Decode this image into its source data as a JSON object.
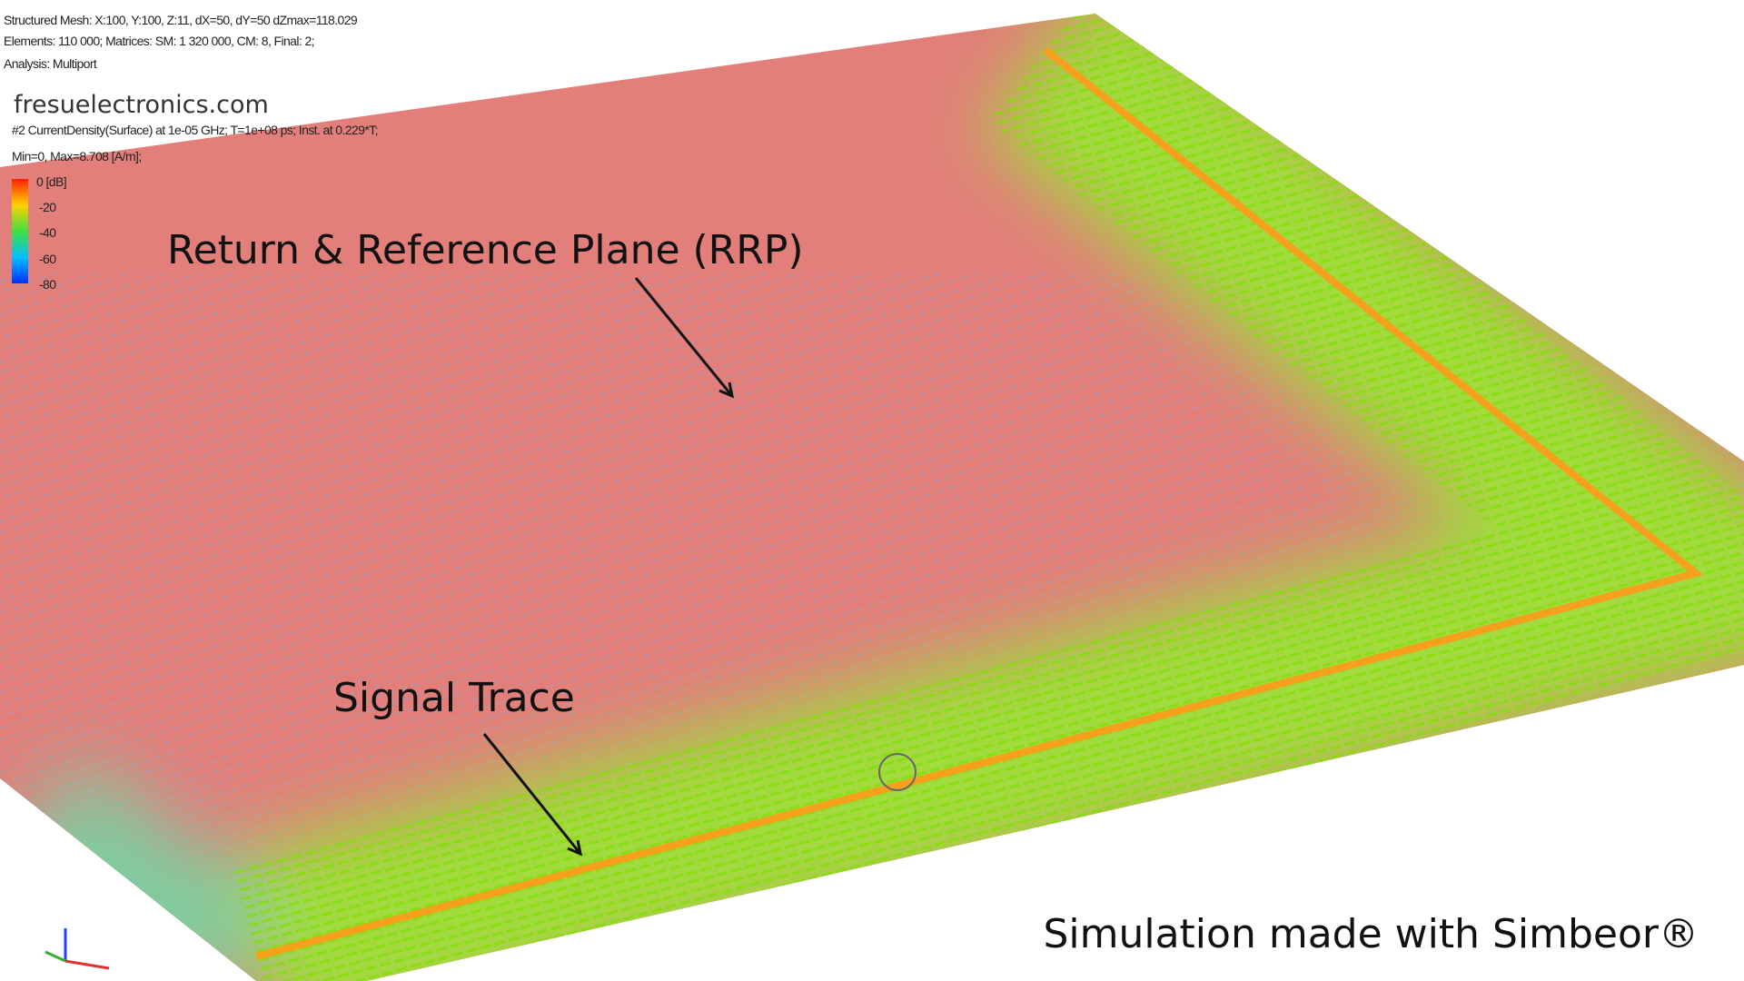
{
  "header": {
    "lines": [
      "Structured Mesh: X:100, Y:100, Z:11, dX=50, dY=50 dZmax=118.029",
      "Elements: 110 000; Matrices: SM: 1 320 000, CM: 8, Final: 2;",
      "Analysis: Multiport"
    ]
  },
  "watermark": "fresuelectronics.com",
  "plot_info": [
    "#2 CurrentDensity(Surface) at 1e-05 GHz; T=1e+08 ps; Inst. at      0.229*T;",
    "Min=0, Max=8.708 [A/m];"
  ],
  "colorbar": {
    "labels": [
      "0 [dB]",
      "-20",
      "-40",
      "-60",
      "-80"
    ]
  },
  "annotations": {
    "plane": "Return & Reference Plane (RRP)",
    "trace": "Signal Trace"
  },
  "footer": "Simulation made with Simbeor®"
}
